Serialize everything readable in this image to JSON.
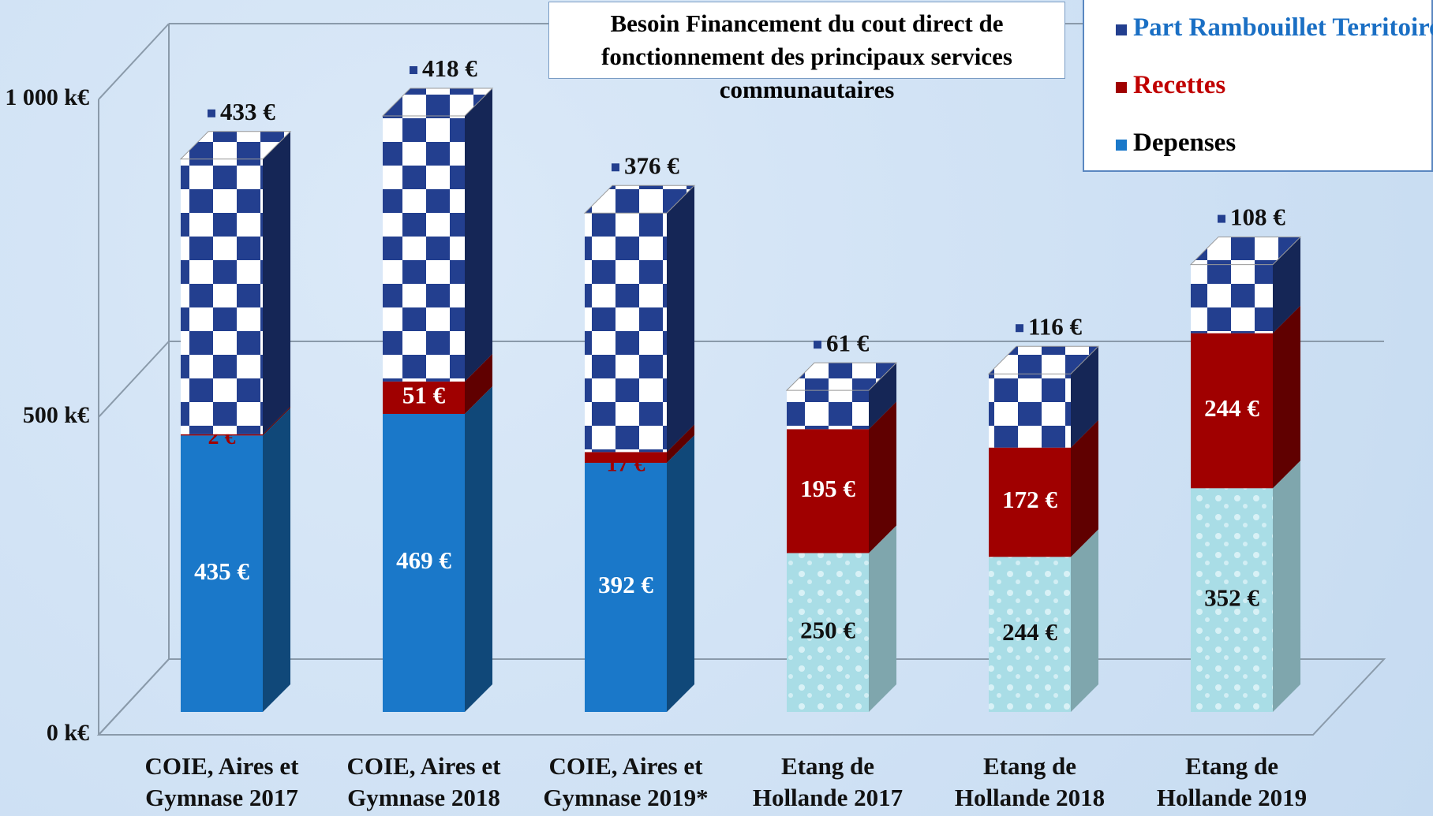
{
  "chart_data": {
    "type": "bar3d_stacked",
    "title": "Besoin Financement du cout direct de fonctionnement des principaux services communautaires",
    "categories": [
      "COIE, Aires et Gymnase 2017",
      "COIE, Aires et Gymnase 2018",
      "COIE, Aires et Gymnase 2019*",
      "Etang de Hollande 2017",
      "Etang de Hollande 2018",
      "Etang de Hollande 2019"
    ],
    "series": [
      {
        "name": "Depenses",
        "color": "#1a78c9",
        "label_color": "#000000",
        "point_colors": [
          "#1a78c9",
          "#1a78c9",
          "#1a78c9",
          "#a9dde6",
          "#a9dde6",
          "#a9dde6"
        ],
        "values": [
          435,
          469,
          392,
          250,
          244,
          352
        ],
        "value_labels": [
          "435 €",
          "469 €",
          "392 €",
          "250 €",
          "244 €",
          "352 €"
        ]
      },
      {
        "name": "Recettes",
        "color": "#a00000",
        "label_color": "#c00000",
        "values": [
          2,
          51,
          17,
          195,
          172,
          244
        ],
        "value_labels": [
          "2 €",
          "51 €",
          "17 €",
          "195 €",
          "172 €",
          "244 €"
        ]
      },
      {
        "name": "Part Rambouillet Territoires",
        "color": "#233f8f",
        "label_color": "#1a6fc4",
        "values": [
          433,
          418,
          376,
          61,
          116,
          108
        ],
        "value_labels": [
          "433 €",
          "418 €",
          "376 €",
          "61 €",
          "116 €",
          "108 €"
        ]
      }
    ],
    "ylim": [
      0,
      1000
    ],
    "yticks": [
      {
        "value": 0,
        "label": "0 k€"
      },
      {
        "value": 500,
        "label": "500 k€"
      },
      {
        "value": 1000,
        "label": "1 000 k€"
      }
    ],
    "grid": true
  }
}
